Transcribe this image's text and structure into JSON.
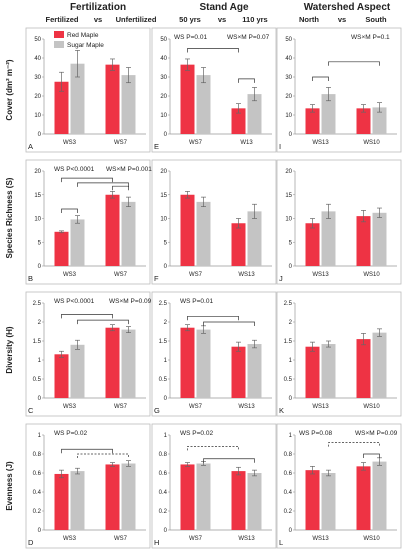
{
  "figure": {
    "column_titles": [
      "Fertilization",
      "Stand Age",
      "Watershed Aspect"
    ],
    "column_subtitles": [
      [
        "Fertilized",
        "vs",
        "Unfertilized"
      ],
      [
        "50 yrs",
        "vs",
        "110 yrs"
      ],
      [
        "North",
        "vs",
        "South"
      ]
    ],
    "row_labels": [
      "Cover (dm² m⁻²)",
      "Species Richness (S)",
      "Diversity (H)",
      "Evenness (J)"
    ],
    "legend": [
      {
        "name": "Red Maple",
        "color": "#ee3344"
      },
      {
        "name": "Sugar Maple",
        "color": "#c4c4c4"
      }
    ]
  },
  "chart_data": [
    {
      "panel": "A",
      "type": "bar",
      "categories": [
        "WS3",
        "WS7"
      ],
      "ylim": [
        0,
        50
      ],
      "yticks": [
        0,
        10,
        20,
        30,
        40,
        50
      ],
      "series": [
        {
          "name": "Red Maple",
          "values": [
            27.5,
            36.5
          ],
          "errors": [
            5,
            3
          ]
        },
        {
          "name": "Sugar Maple",
          "values": [
            37,
            31
          ],
          "errors": [
            7,
            4
          ]
        }
      ],
      "annotations": [],
      "brackets": []
    },
    {
      "panel": "E",
      "type": "bar",
      "categories": [
        "WS7",
        "W13"
      ],
      "ylim": [
        0,
        50
      ],
      "yticks": [
        0,
        10,
        20,
        30,
        40,
        50
      ],
      "series": [
        {
          "name": "Red Maple",
          "values": [
            36.5,
            13.5
          ],
          "errors": [
            3,
            2.5
          ]
        },
        {
          "name": "Sugar Maple",
          "values": [
            31,
            21
          ],
          "errors": [
            4,
            3.5
          ]
        }
      ],
      "annotations": [
        "WS P=0.01",
        "WS×M P=0.07"
      ],
      "brackets": [
        {
          "from": [
            0,
            0
          ],
          "to": [
            1,
            0
          ],
          "level": 45,
          "style": "solid"
        },
        {
          "from": [
            1,
            0
          ],
          "to": [
            1,
            1
          ],
          "level": 29,
          "style": "solid"
        }
      ]
    },
    {
      "panel": "I",
      "type": "bar",
      "categories": [
        "WS13",
        "WS10"
      ],
      "ylim": [
        0,
        50
      ],
      "yticks": [
        0,
        10,
        20,
        30,
        40,
        50
      ],
      "series": [
        {
          "name": "Red Maple",
          "values": [
            13.5,
            13.5
          ],
          "errors": [
            2,
            2
          ]
        },
        {
          "name": "Sugar Maple",
          "values": [
            21,
            14
          ],
          "errors": [
            3.5,
            2.5
          ]
        }
      ],
      "annotations": [
        "WS×M P=0.1"
      ],
      "brackets": [
        {
          "from": [
            0,
            0
          ],
          "to": [
            0,
            1
          ],
          "level": 30,
          "style": "solid"
        },
        {
          "from": [
            0,
            1
          ],
          "to": [
            1,
            1
          ],
          "level": 38,
          "style": "solid"
        }
      ]
    },
    {
      "panel": "B",
      "type": "bar",
      "categories": [
        "WS3",
        "WS7"
      ],
      "ylim": [
        0,
        20
      ],
      "yticks": [
        0,
        5,
        10,
        15,
        20
      ],
      "series": [
        {
          "name": "Red Maple",
          "values": [
            7.2,
            15
          ],
          "errors": [
            0.2,
            0.7
          ]
        },
        {
          "name": "Sugar Maple",
          "values": [
            9.8,
            13.5
          ],
          "errors": [
            0.8,
            1
          ]
        }
      ],
      "annotations": [
        "WS P<0.0001",
        "WS×M P=0.001"
      ],
      "brackets": [
        {
          "from": [
            0,
            0
          ],
          "to": [
            0,
            1
          ],
          "level": 12,
          "style": "solid"
        },
        {
          "from": [
            0,
            0
          ],
          "to": [
            1,
            0
          ],
          "level": 18.5,
          "style": "solid"
        },
        {
          "from": [
            0,
            1
          ],
          "to": [
            1,
            1
          ],
          "level": 17.5,
          "style": "solid"
        },
        {
          "from": [
            1,
            0
          ],
          "to": [
            1,
            1
          ],
          "level": 16.8,
          "style": "solid"
        }
      ]
    },
    {
      "panel": "F",
      "type": "bar",
      "categories": [
        "WS7",
        "WS13"
      ],
      "ylim": [
        0,
        20
      ],
      "yticks": [
        0,
        5,
        10,
        15,
        20
      ],
      "series": [
        {
          "name": "Red Maple",
          "values": [
            15,
            9
          ],
          "errors": [
            0.7,
            1
          ]
        },
        {
          "name": "Sugar Maple",
          "values": [
            13.5,
            11.5
          ],
          "errors": [
            1,
            1.5
          ]
        }
      ],
      "annotations": [],
      "brackets": []
    },
    {
      "panel": "J",
      "type": "bar",
      "categories": [
        "WS13",
        "WS10"
      ],
      "ylim": [
        0,
        20
      ],
      "yticks": [
        0,
        5,
        10,
        15,
        20
      ],
      "series": [
        {
          "name": "Red Maple",
          "values": [
            9,
            10.5
          ],
          "errors": [
            1,
            1.2
          ]
        },
        {
          "name": "Sugar Maple",
          "values": [
            11.5,
            11.2
          ],
          "errors": [
            1.5,
            1
          ]
        }
      ],
      "annotations": [],
      "brackets": []
    },
    {
      "panel": "C",
      "type": "bar",
      "categories": [
        "WS3",
        "WS7"
      ],
      "ylim": [
        0,
        2.5
      ],
      "yticks": [
        0,
        0.5,
        1,
        1.5,
        2,
        2.5
      ],
      "series": [
        {
          "name": "Red Maple",
          "values": [
            1.15,
            1.85
          ],
          "errors": [
            0.08,
            0.08
          ]
        },
        {
          "name": "Sugar Maple",
          "values": [
            1.4,
            1.8
          ],
          "errors": [
            0.12,
            0.08
          ]
        }
      ],
      "annotations": [
        "WS P<0.0001",
        "WS×M P=0.09"
      ],
      "brackets": [
        {
          "from": [
            0,
            0
          ],
          "to": [
            1,
            0
          ],
          "level": 2.2,
          "style": "solid"
        },
        {
          "from": [
            0,
            1
          ],
          "to": [
            1,
            1
          ],
          "level": 2.05,
          "style": "solid"
        }
      ]
    },
    {
      "panel": "G",
      "type": "bar",
      "categories": [
        "WS7",
        "WS13"
      ],
      "ylim": [
        0,
        2.5
      ],
      "yticks": [
        0,
        0.5,
        1,
        1.5,
        2,
        2.5
      ],
      "series": [
        {
          "name": "Red Maple",
          "values": [
            1.85,
            1.35
          ],
          "errors": [
            0.08,
            0.12
          ]
        },
        {
          "name": "Sugar Maple",
          "values": [
            1.8,
            1.42
          ],
          "errors": [
            0.1,
            0.1
          ]
        }
      ],
      "annotations": [
        "WS P=0.01"
      ],
      "brackets": [
        {
          "from": [
            0,
            0
          ],
          "to": [
            1,
            0
          ],
          "level": 2.15,
          "style": "solid"
        },
        {
          "from": [
            0,
            1
          ],
          "to": [
            1,
            1
          ],
          "level": 2.0,
          "style": "solid"
        }
      ]
    },
    {
      "panel": "K",
      "type": "bar",
      "categories": [
        "WS13",
        "WS10"
      ],
      "ylim": [
        0,
        2.5
      ],
      "yticks": [
        0,
        0.5,
        1,
        1.5,
        2,
        2.5
      ],
      "series": [
        {
          "name": "Red Maple",
          "values": [
            1.35,
            1.55
          ],
          "errors": [
            0.12,
            0.15
          ]
        },
        {
          "name": "Sugar Maple",
          "values": [
            1.42,
            1.72
          ],
          "errors": [
            0.08,
            0.1
          ]
        }
      ],
      "annotations": [],
      "brackets": []
    },
    {
      "panel": "D",
      "type": "bar",
      "categories": [
        "WS3",
        "WS7"
      ],
      "ylim": [
        0,
        1
      ],
      "yticks": [
        0,
        0.2,
        0.4,
        0.6,
        0.8,
        1
      ],
      "series": [
        {
          "name": "Red Maple",
          "values": [
            0.59,
            0.69
          ],
          "errors": [
            0.04,
            0.02
          ]
        },
        {
          "name": "Sugar Maple",
          "values": [
            0.62,
            0.7
          ],
          "errors": [
            0.03,
            0.03
          ]
        }
      ],
      "annotations": [
        "WS P=0.02"
      ],
      "brackets": [
        {
          "from": [
            0,
            0
          ],
          "to": [
            1,
            0
          ],
          "level": 0.85,
          "style": "solid"
        },
        {
          "from": [
            0,
            1
          ],
          "to": [
            1,
            1
          ],
          "level": 0.8,
          "style": "dashed"
        }
      ]
    },
    {
      "panel": "H",
      "type": "bar",
      "categories": [
        "WS7",
        "WS13"
      ],
      "ylim": [
        0,
        1
      ],
      "yticks": [
        0,
        0.2,
        0.4,
        0.6,
        0.8,
        1
      ],
      "series": [
        {
          "name": "Red Maple",
          "values": [
            0.69,
            0.62
          ],
          "errors": [
            0.02,
            0.04
          ]
        },
        {
          "name": "Sugar Maple",
          "values": [
            0.7,
            0.6
          ],
          "errors": [
            0.02,
            0.03
          ]
        }
      ],
      "annotations": [
        "WS P=0.02"
      ],
      "brackets": [
        {
          "from": [
            0,
            0
          ],
          "to": [
            1,
            0
          ],
          "level": 0.88,
          "style": "dashed"
        },
        {
          "from": [
            0,
            1
          ],
          "to": [
            1,
            1
          ],
          "level": 0.75,
          "style": "solid"
        }
      ]
    },
    {
      "panel": "L",
      "type": "bar",
      "categories": [
        "WS13",
        "WS10"
      ],
      "ylim": [
        0,
        1
      ],
      "yticks": [
        0,
        0.2,
        0.4,
        0.6,
        0.8,
        1
      ],
      "series": [
        {
          "name": "Red Maple",
          "values": [
            0.63,
            0.67
          ],
          "errors": [
            0.04,
            0.04
          ]
        },
        {
          "name": "Sugar Maple",
          "values": [
            0.6,
            0.72
          ],
          "errors": [
            0.03,
            0.04
          ]
        }
      ],
      "annotations": [
        "WS P=0.08",
        "WS×M P=0.09"
      ],
      "brackets": [
        {
          "from": [
            0,
            1
          ],
          "to": [
            1,
            1
          ],
          "level": 0.92,
          "style": "dashed"
        },
        {
          "from": [
            1,
            0
          ],
          "to": [
            1,
            1
          ],
          "level": 0.8,
          "style": "solid"
        }
      ]
    }
  ]
}
